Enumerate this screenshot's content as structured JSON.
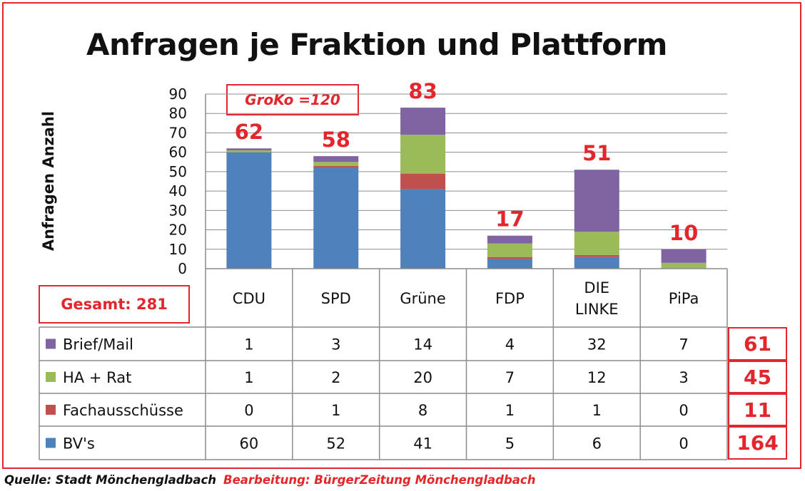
{
  "title": "Anfragen je Fraktion und Plattform",
  "groko_label": "GroKo =120",
  "gesamt_label": "Gesamt: 281",
  "footer": {
    "source": "Quelle: Stadt Mönchengladbach",
    "processing": "Bearbeitung: BürgerZeitung Mönchengladbach"
  },
  "colors": {
    "Brief/Mail": "#8064a2",
    "HA + Rat": "#9bbb59",
    "Fachausschüsse": "#c0504d",
    "BV's": "#4f81bd",
    "accent": "#e3262b"
  },
  "chart_data": {
    "type": "bar",
    "stacked": true,
    "title": "Anfragen je Fraktion und Plattform",
    "ylabel": "Anfragen Anzahl",
    "xlabel": "",
    "ylim": [
      0,
      90
    ],
    "yticks": [
      0,
      10,
      20,
      30,
      40,
      50,
      60,
      70,
      80,
      90
    ],
    "grid": true,
    "legend": "data-table",
    "categories": [
      "CDU",
      "SPD",
      "Grüne",
      "FDP",
      "DIE LINKE",
      "PiPa"
    ],
    "category_lines": [
      [
        "CDU"
      ],
      [
        "SPD"
      ],
      [
        "Grüne"
      ],
      [
        "FDP"
      ],
      [
        "DIE",
        "LINKE"
      ],
      [
        "PiPa"
      ]
    ],
    "totals": [
      62,
      58,
      83,
      17,
      51,
      10
    ],
    "series": [
      {
        "name": "Brief/Mail",
        "values": [
          1,
          3,
          14,
          4,
          32,
          7
        ],
        "total": 61
      },
      {
        "name": "HA + Rat",
        "values": [
          1,
          2,
          20,
          7,
          12,
          3
        ],
        "total": 45
      },
      {
        "name": "Fachausschüsse",
        "values": [
          0,
          1,
          8,
          1,
          1,
          0
        ],
        "total": 11
      },
      {
        "name": "BV's",
        "values": [
          60,
          52,
          41,
          5,
          6,
          0
        ],
        "total": 164
      }
    ]
  }
}
